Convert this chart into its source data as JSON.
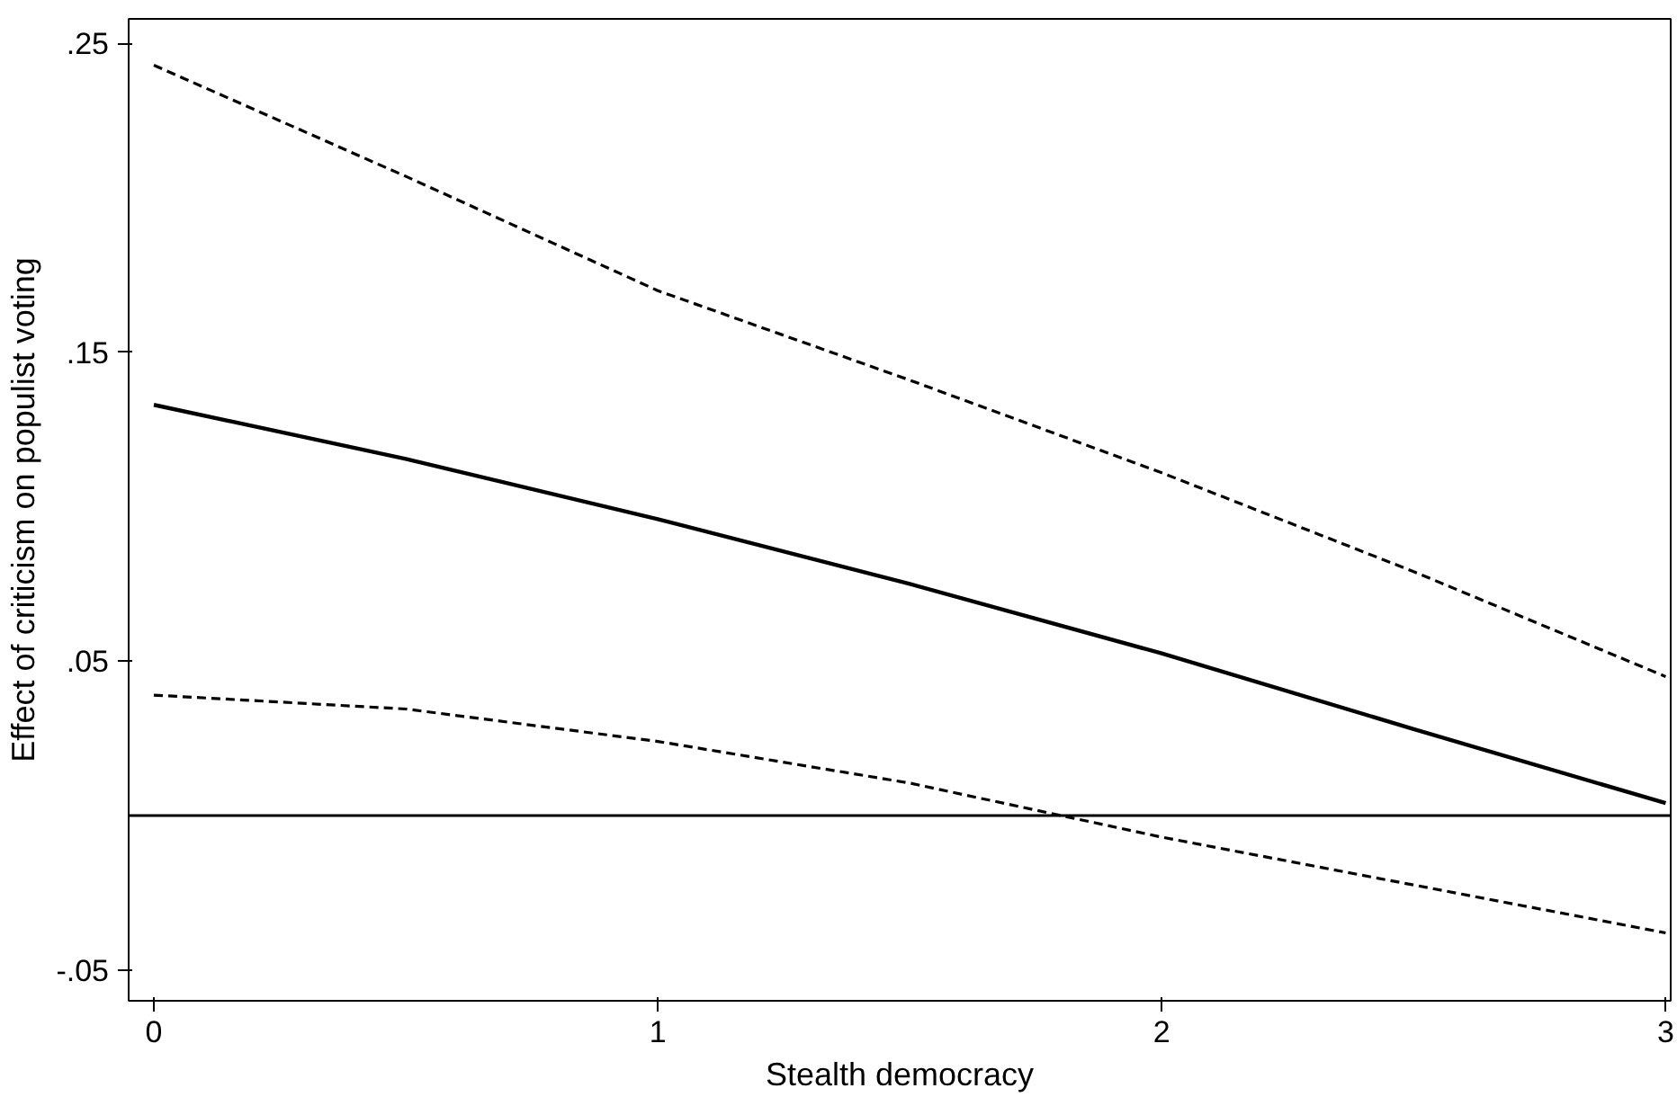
{
  "chart_data": {
    "type": "line",
    "xlabel": "Stealth democracy",
    "ylabel": "Effect of criticism on populist voting",
    "x": [
      0,
      0.5,
      1,
      1.5,
      2,
      2.5,
      3
    ],
    "series": [
      {
        "color": "#000000",
        "line_style": "solid",
        "values": [
          0.133,
          0.1155,
          0.096,
          0.075,
          0.0525,
          0.028,
          0.004
        ]
      },
      {
        "color": "#000000",
        "line_style": "dashed",
        "values": [
          0.243,
          0.207,
          0.17,
          0.141,
          0.111,
          0.079,
          0.045
        ]
      },
      {
        "color": "#000000",
        "line_style": "dashed",
        "values": [
          0.039,
          0.0345,
          0.024,
          0.0105,
          -0.007,
          -0.0225,
          -0.038
        ]
      }
    ],
    "xlim": [
      -0.05,
      3.01
    ],
    "ylim": [
      -0.06,
      0.258
    ],
    "xticks": [
      0,
      1,
      2,
      3
    ],
    "yticks": [
      {
        "value": -0.05,
        "label": "-.05"
      },
      {
        "value": 0.05,
        "label": ".05"
      },
      {
        "value": 0.15,
        "label": ".15"
      },
      {
        "value": 0.25,
        "label": ".25"
      }
    ],
    "ref_lines": [
      {
        "axis": "y",
        "value": 0,
        "color": "#000000"
      }
    ],
    "grid": false
  }
}
